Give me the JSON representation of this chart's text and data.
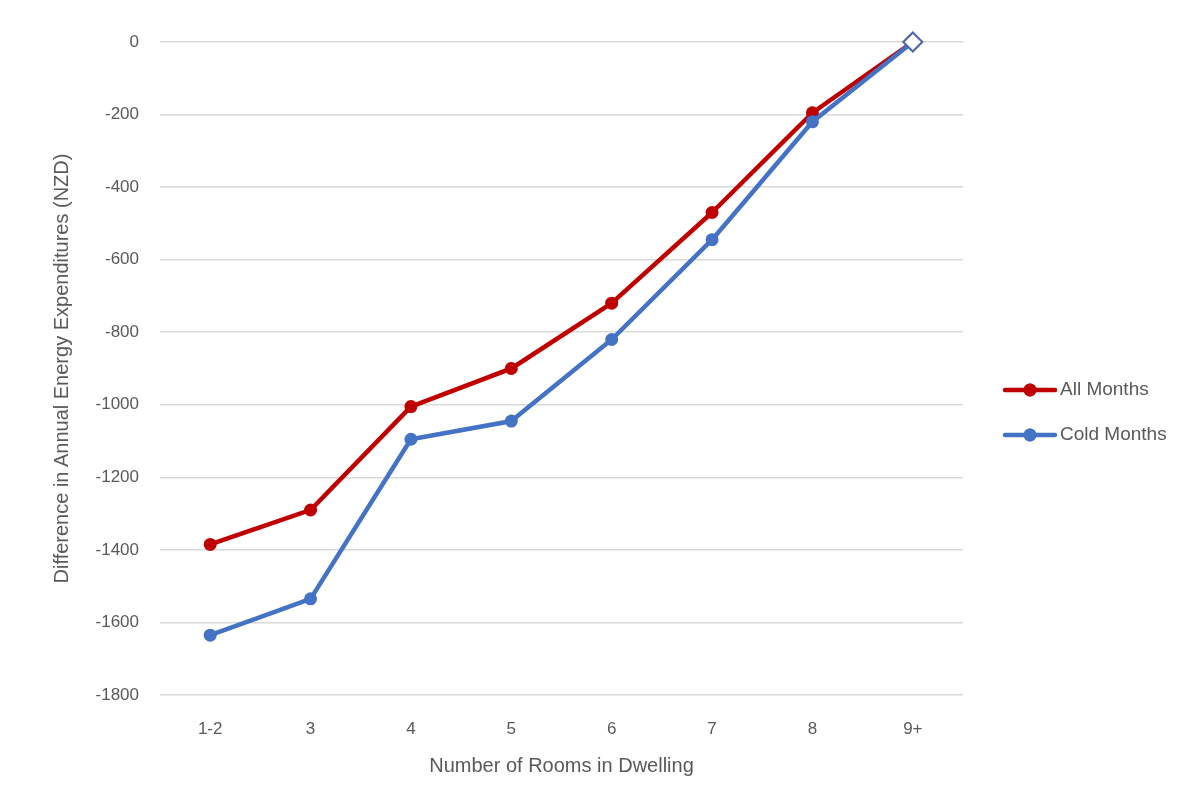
{
  "chart_data": {
    "type": "line",
    "xlabel": "Number of Rooms in Dwelling",
    "ylabel": "Difference in Annual Energy Expenditures (NZD)",
    "categories": [
      "1-2",
      "3",
      "4",
      "5",
      "6",
      "7",
      "8",
      "9+"
    ],
    "series": [
      {
        "name": "All Months",
        "color": "#c00000",
        "values": [
          -1385,
          -1290,
          -1005,
          -900,
          -720,
          -470,
          -195,
          0
        ]
      },
      {
        "name": "Cold Months",
        "color": "#4472c4",
        "values": [
          -1635,
          -1535,
          -1095,
          -1045,
          -820,
          -545,
          -220,
          0
        ]
      },
      {
        "type": "scatter",
        "color": "#4a62b0",
        "marker": "diamond",
        "x": [
          "9+"
        ],
        "values": [
          0
        ]
      }
    ],
    "ylim": [
      -1800,
      0
    ],
    "yticks": [
      -1800,
      -1600,
      -1400,
      -1200,
      -1000,
      -800,
      -600,
      -400,
      -200,
      0
    ],
    "grid": "y",
    "legend": "right",
    "marker": "circle",
    "line_style": "solid"
  }
}
